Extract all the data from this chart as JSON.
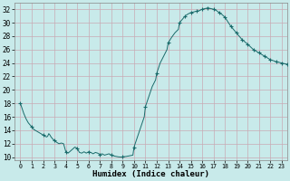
{
  "title": "",
  "xlabel": "Humidex (Indice chaleur)",
  "ylabel": "",
  "background_color": "#c8eaea",
  "grid_color": "#c8aab4",
  "line_color": "#1a6b6b",
  "marker_color": "#1a6b6b",
  "xlim": [
    -0.5,
    23.5
  ],
  "ylim": [
    9.5,
    33.0
  ],
  "yticks": [
    10,
    12,
    14,
    16,
    18,
    20,
    22,
    24,
    26,
    28,
    30,
    32
  ],
  "xtick_labels": [
    "0",
    "1",
    "2",
    "3",
    "4",
    "5",
    "6",
    "7",
    "8",
    "9",
    "10",
    "11",
    "12",
    "13",
    "14",
    "15",
    "16",
    "17",
    "18",
    "19",
    "20",
    "21",
    "22",
    "23"
  ],
  "x": [
    0,
    0.1,
    0.2,
    0.3,
    0.4,
    0.5,
    0.6,
    0.7,
    0.8,
    0.9,
    1.0,
    1.1,
    1.2,
    1.3,
    1.4,
    1.5,
    1.6,
    1.7,
    1.8,
    1.9,
    2.0,
    2.1,
    2.2,
    2.3,
    2.4,
    2.5,
    2.6,
    2.7,
    2.8,
    2.9,
    3.0,
    3.2,
    3.4,
    3.6,
    3.8,
    4.0,
    4.2,
    4.4,
    4.6,
    4.8,
    5.0,
    5.2,
    5.4,
    5.6,
    5.8,
    6.0,
    6.2,
    6.4,
    6.6,
    6.8,
    7.0,
    7.2,
    7.4,
    7.6,
    7.8,
    8.0,
    8.3,
    8.6,
    8.9,
    9.0,
    9.3,
    9.6,
    9.9,
    10.0,
    10.3,
    10.6,
    10.9,
    11.0,
    11.3,
    11.6,
    11.9,
    12.0,
    12.3,
    12.6,
    12.9,
    13.0,
    13.3,
    13.6,
    13.9,
    14.0,
    14.25,
    14.5,
    14.75,
    15.0,
    15.25,
    15.5,
    15.75,
    16.0,
    16.25,
    16.5,
    16.75,
    17.0,
    17.25,
    17.5,
    17.75,
    18.0,
    18.5,
    19.0,
    19.5,
    20.0,
    20.5,
    21.0,
    21.5,
    22.0,
    22.5,
    23.0,
    23.5
  ],
  "y": [
    18.0,
    17.5,
    17.0,
    16.5,
    16.1,
    15.7,
    15.4,
    15.1,
    14.9,
    14.7,
    14.5,
    14.3,
    14.1,
    14.0,
    13.9,
    13.8,
    13.7,
    13.6,
    13.5,
    13.4,
    13.3,
    13.2,
    13.1,
    13.0,
    13.1,
    13.5,
    13.3,
    13.0,
    12.8,
    12.6,
    12.5,
    12.2,
    12.0,
    12.1,
    12.0,
    10.8,
    10.6,
    10.9,
    11.2,
    11.5,
    11.3,
    10.7,
    10.6,
    10.8,
    10.6,
    10.8,
    10.7,
    10.5,
    10.7,
    10.6,
    10.4,
    10.5,
    10.3,
    10.4,
    10.5,
    10.3,
    10.15,
    10.05,
    10.0,
    10.05,
    10.1,
    10.2,
    10.3,
    11.5,
    13.0,
    14.5,
    16.0,
    17.5,
    19.0,
    20.5,
    21.5,
    22.5,
    24.0,
    25.0,
    26.0,
    27.0,
    27.8,
    28.5,
    29.0,
    30.0,
    30.5,
    31.0,
    31.3,
    31.5,
    31.6,
    31.7,
    31.8,
    32.0,
    32.1,
    32.2,
    32.1,
    32.0,
    31.8,
    31.5,
    31.2,
    30.8,
    29.5,
    28.5,
    27.5,
    26.8,
    26.0,
    25.5,
    25.0,
    24.5,
    24.2,
    24.0,
    23.8
  ],
  "marker_x": [
    0,
    1,
    2,
    3,
    4,
    5,
    6,
    7,
    8,
    9,
    10,
    11,
    12,
    13,
    14,
    14.5,
    15,
    15.5,
    16,
    16.5,
    17,
    17.5,
    18,
    18.5,
    19,
    19.5,
    20,
    20.5,
    21,
    21.5,
    22,
    22.5,
    23,
    23.5
  ],
  "marker_y": [
    18.0,
    14.5,
    13.3,
    12.5,
    10.8,
    11.3,
    10.8,
    10.4,
    10.3,
    10.05,
    11.5,
    17.5,
    22.5,
    27.0,
    30.0,
    31.0,
    31.5,
    31.7,
    32.0,
    32.2,
    32.0,
    31.5,
    30.8,
    29.5,
    28.5,
    27.5,
    26.8,
    26.0,
    25.5,
    25.0,
    24.5,
    24.2,
    24.0,
    23.8
  ]
}
